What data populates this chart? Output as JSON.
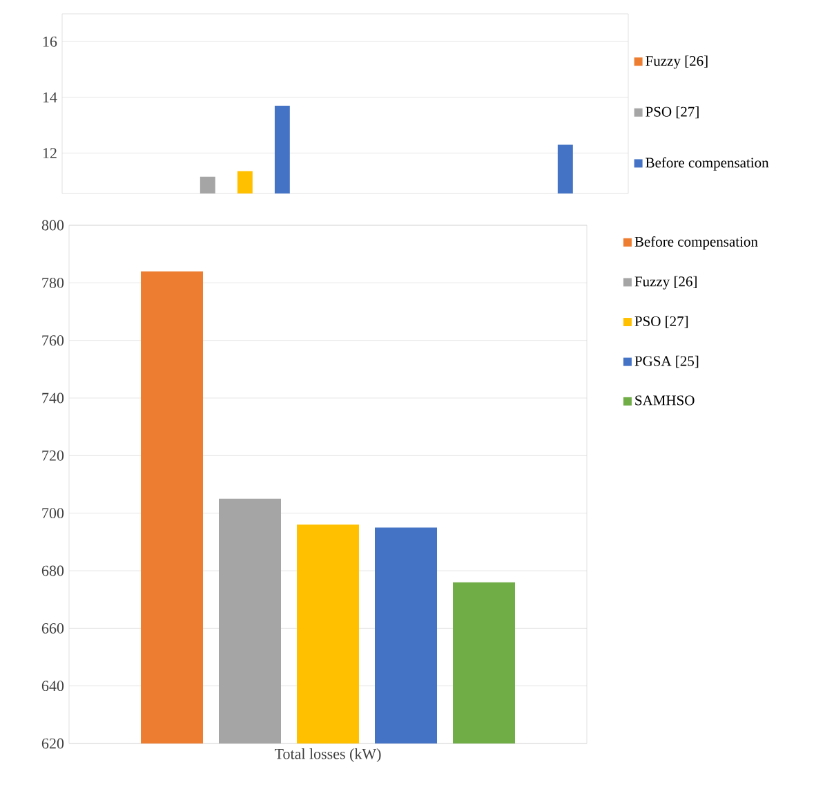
{
  "chart_data": [
    {
      "type": "bar",
      "categories": [
        null,
        null
      ],
      "ylim": [
        10.55,
        17
      ],
      "yticks": [
        12,
        14,
        16
      ],
      "grid": "y",
      "legend": "right",
      "series": [
        {
          "name": "Fuzzy [26]",
          "color": "#ed7d31",
          "values": [
            null,
            null
          ]
        },
        {
          "name": "PSO [27]",
          "color": "#a5a5a5",
          "values": [
            11.15,
            null
          ]
        },
        {
          "color": "#ffc000",
          "values": [
            11.35,
            null
          ]
        },
        {
          "name": "Before compensation",
          "color": "#4472c4",
          "values": [
            13.7,
            12.3
          ]
        }
      ]
    },
    {
      "type": "bar",
      "categories": [
        "Total losses (kW)"
      ],
      "ylim": [
        620,
        800
      ],
      "yticks": [
        620,
        640,
        660,
        680,
        700,
        720,
        740,
        760,
        780,
        800
      ],
      "grid": "y",
      "legend": "right",
      "series": [
        {
          "name": "Before compensation",
          "color": "#ed7d31",
          "values": [
            784
          ]
        },
        {
          "name": "Fuzzy [26]",
          "color": "#a5a5a5",
          "values": [
            705
          ]
        },
        {
          "name": "PSO [27]",
          "color": "#ffc000",
          "values": [
            696
          ]
        },
        {
          "name": "PGSA [25]",
          "color": "#4472c4",
          "values": [
            695
          ]
        },
        {
          "name": "SAMHSO",
          "color": "#70ad47",
          "values": [
            676
          ]
        }
      ]
    }
  ]
}
